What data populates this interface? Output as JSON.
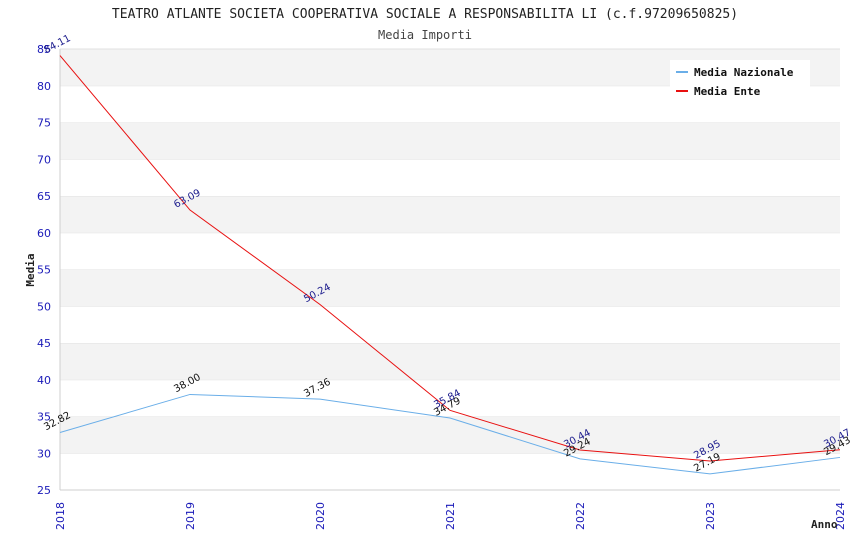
{
  "chart_data": {
    "type": "line",
    "title": "TEATRO ATLANTE SOCIETA COOPERATIVA SOCIALE A RESPONSABILITA LI (c.f.97209650825)",
    "subtitle": "Media Importi",
    "xlabel": "Anno",
    "ylabel": "Media",
    "ylim": [
      25,
      85
    ],
    "yticks": [
      25,
      30,
      35,
      40,
      45,
      50,
      55,
      60,
      65,
      70,
      75,
      80,
      85
    ],
    "x": [
      "2018",
      "2019",
      "2020",
      "2021",
      "2022",
      "2023",
      "2024"
    ],
    "grid": "horizontal alternating bands",
    "legend": "top-right",
    "series": [
      {
        "name": "Media Nazionale",
        "color": "#6aaee8",
        "values": [
          32.82,
          38.0,
          37.36,
          34.79,
          29.24,
          27.19,
          29.43
        ],
        "labels": [
          "32.82",
          "38.00",
          "37.36",
          "34.79",
          "29.24",
          "27.19",
          "29.43"
        ]
      },
      {
        "name": "Media Ente",
        "color": "#e81010",
        "values": [
          84.11,
          63.09,
          50.24,
          35.84,
          30.44,
          28.95,
          30.47
        ],
        "labels": [
          "84.11",
          "63.09",
          "50.24",
          "35.84",
          "30.44",
          "28.95",
          "30.47"
        ]
      }
    ]
  }
}
